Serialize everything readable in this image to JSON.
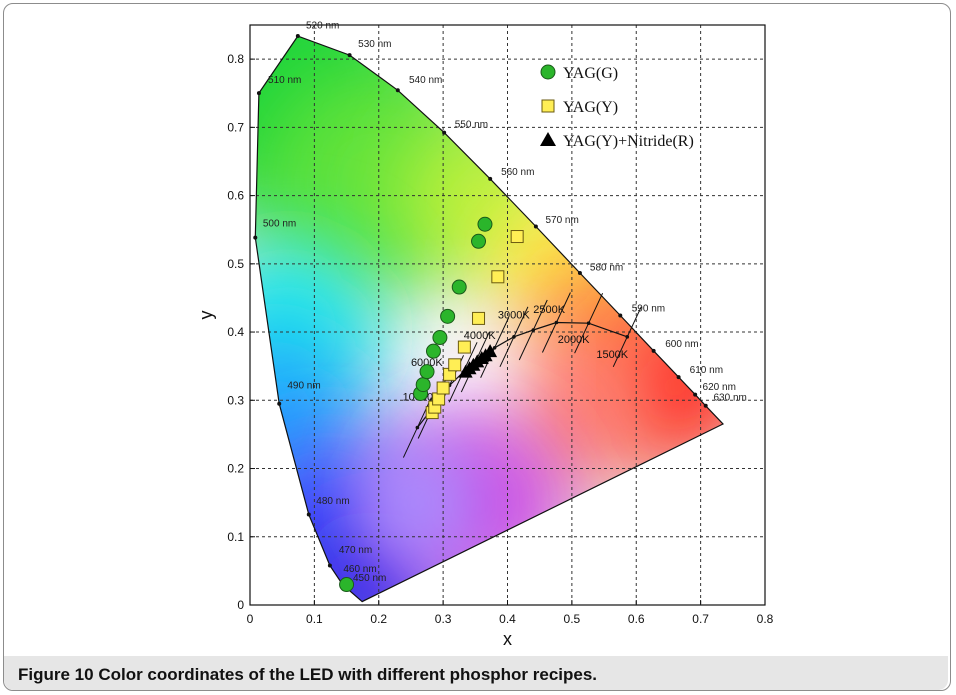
{
  "caption": {
    "number": "Figure 10",
    "text": "Color coordinates of the LED with different phosphor recipes."
  },
  "chart_data": {
    "type": "scatter",
    "xlabel": "x",
    "ylabel": "y",
    "xlim": [
      0,
      0.8
    ],
    "ylim": [
      0,
      0.85
    ],
    "x_ticks": [
      "0",
      "0.1",
      "0.2",
      "0.3",
      "0.4",
      "0.5",
      "0.6",
      "0.7",
      "0.8"
    ],
    "y_ticks": [
      "0",
      "0.1",
      "0.2",
      "0.3",
      "0.4",
      "0.5",
      "0.6",
      "0.7",
      "0.8"
    ],
    "grid": true,
    "legend_position": "top-right",
    "spectral_locus": [
      [
        0.1741,
        0.005
      ],
      [
        0.144,
        0.0297
      ],
      [
        0.1241,
        0.0578
      ],
      [
        0.0913,
        0.1327
      ],
      [
        0.0454,
        0.295
      ],
      [
        0.0082,
        0.5384
      ],
      [
        0.0139,
        0.7502
      ],
      [
        0.0743,
        0.8338
      ],
      [
        0.1547,
        0.8059
      ],
      [
        0.2296,
        0.7543
      ],
      [
        0.3016,
        0.6923
      ],
      [
        0.3731,
        0.6245
      ],
      [
        0.4441,
        0.5547
      ],
      [
        0.5125,
        0.4866
      ],
      [
        0.5752,
        0.4242
      ],
      [
        0.627,
        0.3725
      ],
      [
        0.6658,
        0.334
      ],
      [
        0.6915,
        0.3083
      ],
      [
        0.7079,
        0.292
      ],
      [
        0.7347,
        0.2653
      ]
    ],
    "wavelength_labels": [
      {
        "text": "450 nm",
        "x": 0.16,
        "y": 0.035
      },
      {
        "text": "460 nm",
        "x": 0.145,
        "y": 0.048
      },
      {
        "text": "470 nm",
        "x": 0.138,
        "y": 0.076
      },
      {
        "text": "480 nm",
        "x": 0.103,
        "y": 0.148
      },
      {
        "text": "490 nm",
        "x": 0.058,
        "y": 0.317
      },
      {
        "text": "500 nm",
        "x": 0.02,
        "y": 0.555
      },
      {
        "text": "510 nm",
        "x": 0.028,
        "y": 0.765
      },
      {
        "text": "520 nm",
        "x": 0.087,
        "y": 0.845
      },
      {
        "text": "530 nm",
        "x": 0.168,
        "y": 0.818
      },
      {
        "text": "540 nm",
        "x": 0.247,
        "y": 0.765
      },
      {
        "text": "550 nm",
        "x": 0.318,
        "y": 0.7
      },
      {
        "text": "560 nm",
        "x": 0.39,
        "y": 0.63
      },
      {
        "text": "570 nm",
        "x": 0.459,
        "y": 0.56
      },
      {
        "text": "580 nm",
        "x": 0.528,
        "y": 0.49
      },
      {
        "text": "590 nm",
        "x": 0.593,
        "y": 0.43
      },
      {
        "text": "600 nm",
        "x": 0.645,
        "y": 0.378
      },
      {
        "text": "610 nm",
        "x": 0.683,
        "y": 0.34
      },
      {
        "text": "620 nm",
        "x": 0.703,
        "y": 0.315
      },
      {
        "text": "630 nm",
        "x": 0.72,
        "y": 0.3
      }
    ],
    "planckian_locus": [
      [
        0.26,
        0.26
      ],
      [
        0.283,
        0.288
      ],
      [
        0.31,
        0.322
      ],
      [
        0.331,
        0.341
      ],
      [
        0.35,
        0.356
      ],
      [
        0.38,
        0.377
      ],
      [
        0.41,
        0.393
      ],
      [
        0.44,
        0.403
      ],
      [
        0.476,
        0.414
      ],
      [
        0.526,
        0.413
      ],
      [
        0.586,
        0.393
      ]
    ],
    "cct_labels": [
      {
        "text": "10000K",
        "x": 0.237,
        "y": 0.3
      },
      {
        "text": "6000K",
        "x": 0.25,
        "y": 0.35
      },
      {
        "text": "4000K",
        "x": 0.332,
        "y": 0.39
      },
      {
        "text": "3000K",
        "x": 0.385,
        "y": 0.42
      },
      {
        "text": "2500K",
        "x": 0.44,
        "y": 0.428
      },
      {
        "text": "2000K",
        "x": 0.478,
        "y": 0.384
      },
      {
        "text": "1500K",
        "x": 0.538,
        "y": 0.362
      }
    ],
    "series": [
      {
        "name": "YAG(G)",
        "marker": "circle",
        "color": "#2bb52b",
        "points": [
          [
            0.15,
            0.03
          ],
          [
            0.265,
            0.31
          ],
          [
            0.269,
            0.323
          ],
          [
            0.275,
            0.342
          ],
          [
            0.285,
            0.372
          ],
          [
            0.295,
            0.392
          ],
          [
            0.307,
            0.423
          ],
          [
            0.325,
            0.466
          ],
          [
            0.355,
            0.533
          ],
          [
            0.365,
            0.558
          ]
        ]
      },
      {
        "name": "YAG(Y)",
        "marker": "square",
        "color": "#ffee55",
        "points": [
          [
            0.283,
            0.282
          ],
          [
            0.287,
            0.29
          ],
          [
            0.293,
            0.302
          ],
          [
            0.3,
            0.318
          ],
          [
            0.31,
            0.338
          ],
          [
            0.318,
            0.352
          ],
          [
            0.333,
            0.378
          ],
          [
            0.355,
            0.42
          ],
          [
            0.385,
            0.481
          ],
          [
            0.415,
            0.54
          ]
        ]
      },
      {
        "name": "YAG(Y)+Nitride(R)",
        "marker": "triangle",
        "color": "#000000",
        "points": [
          [
            0.335,
            0.342
          ],
          [
            0.341,
            0.347
          ],
          [
            0.347,
            0.352
          ],
          [
            0.353,
            0.357
          ],
          [
            0.36,
            0.362
          ],
          [
            0.366,
            0.366
          ],
          [
            0.373,
            0.372
          ]
        ]
      }
    ]
  }
}
